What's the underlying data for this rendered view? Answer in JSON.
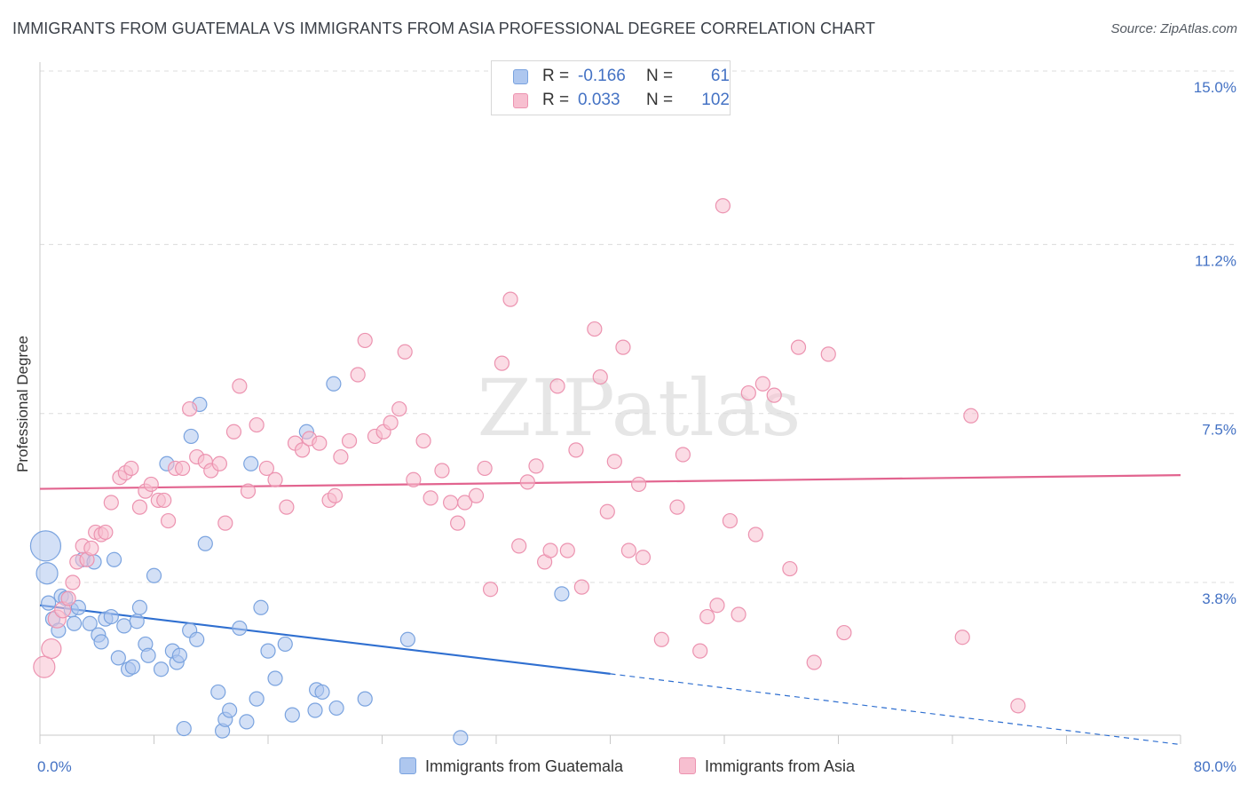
{
  "title": "IMMIGRANTS FROM GUATEMALA VS IMMIGRANTS FROM ASIA PROFESSIONAL DEGREE CORRELATION CHART",
  "source": "Source: ZipAtlas.com",
  "watermark": "ZIPatlas",
  "legend": {
    "series1": {
      "r_label": "R =",
      "r_value": "-0.166",
      "n_label": "N =",
      "n_value": "61"
    },
    "series2": {
      "r_label": "R =",
      "r_value": "0.033",
      "n_label": "N =",
      "n_value": "102"
    }
  },
  "bottom_legend": [
    "Immigrants from Guatemala",
    "Immigrants from Asia"
  ],
  "colors": {
    "guatemala_fill": "#aec7ef",
    "guatemala_stroke": "#7aa3df",
    "guatemala_line": "#2f6fd0",
    "asia_fill": "#f7bfd0",
    "asia_stroke": "#ec93b0",
    "asia_line": "#e2648f",
    "tick_label": "#4472c4",
    "grid": "#dcdcdc"
  },
  "chart_data": {
    "type": "scatter",
    "title": "IMMIGRANTS FROM GUATEMALA VS IMMIGRANTS FROM ASIA PROFESSIONAL DEGREE CORRELATION CHART",
    "xlabel": "",
    "ylabel": "Professional Degree",
    "xlim": [
      0,
      80
    ],
    "ylim": [
      0,
      15.5
    ],
    "x_tick_labels": [
      "0.0%",
      "80.0%"
    ],
    "y_ticks": [
      3.8,
      7.5,
      11.2,
      15.0
    ],
    "y_tick_labels": [
      "3.8%",
      "7.5%",
      "11.2%",
      "15.0%"
    ],
    "grid": "horizontal dashed",
    "legend_position": "top-center",
    "series": [
      {
        "name": "Immigrants from Guatemala",
        "R": -0.166,
        "N": 61,
        "trend": {
          "x0": 0,
          "y0": 3.3,
          "x1": 40,
          "y1": 1.8,
          "dashed_to": [
            80,
            0.25
          ]
        },
        "points": [
          [
            0.4,
            4.6,
            17
          ],
          [
            0.5,
            4.0,
            12
          ],
          [
            0.6,
            3.35,
            8
          ],
          [
            0.9,
            3.0,
            8
          ],
          [
            1.3,
            2.75,
            8
          ],
          [
            1.5,
            3.5,
            8
          ],
          [
            1.8,
            3.45,
            8
          ],
          [
            2.2,
            3.2,
            8
          ],
          [
            2.4,
            2.9,
            8
          ],
          [
            2.7,
            3.25,
            8
          ],
          [
            3.0,
            4.3,
            8
          ],
          [
            3.5,
            2.9,
            8
          ],
          [
            3.8,
            4.25,
            8
          ],
          [
            4.1,
            2.65,
            8
          ],
          [
            4.3,
            2.5,
            8
          ],
          [
            4.6,
            3.0,
            8
          ],
          [
            5.0,
            3.05,
            8
          ],
          [
            5.2,
            4.3,
            8
          ],
          [
            5.5,
            2.15,
            8
          ],
          [
            5.9,
            2.85,
            8
          ],
          [
            6.2,
            1.9,
            8
          ],
          [
            6.5,
            1.95,
            8
          ],
          [
            6.8,
            2.95,
            8
          ],
          [
            7.0,
            3.25,
            8
          ],
          [
            7.4,
            2.45,
            8
          ],
          [
            7.6,
            2.2,
            8
          ],
          [
            8.0,
            3.95,
            8
          ],
          [
            8.5,
            1.9,
            8
          ],
          [
            8.9,
            6.4,
            8
          ],
          [
            9.3,
            2.3,
            8
          ],
          [
            9.6,
            2.05,
            8
          ],
          [
            9.8,
            2.2,
            8
          ],
          [
            10.1,
            0.6,
            8
          ],
          [
            10.5,
            2.75,
            8
          ],
          [
            10.6,
            7.0,
            8
          ],
          [
            11.0,
            2.55,
            8
          ],
          [
            11.2,
            7.7,
            8
          ],
          [
            11.6,
            4.65,
            8
          ],
          [
            12.5,
            1.4,
            8
          ],
          [
            12.8,
            0.55,
            8
          ],
          [
            13.0,
            0.8,
            8
          ],
          [
            13.3,
            1.0,
            8
          ],
          [
            14.0,
            2.8,
            8
          ],
          [
            14.5,
            0.75,
            8
          ],
          [
            14.8,
            6.4,
            8
          ],
          [
            15.2,
            1.25,
            8
          ],
          [
            15.5,
            3.25,
            8
          ],
          [
            16.0,
            2.3,
            8
          ],
          [
            16.5,
            1.7,
            8
          ],
          [
            17.2,
            2.45,
            8
          ],
          [
            17.7,
            0.9,
            8
          ],
          [
            18.7,
            7.1,
            8
          ],
          [
            19.3,
            1.0,
            8
          ],
          [
            19.4,
            1.45,
            8
          ],
          [
            19.8,
            1.4,
            8
          ],
          [
            20.6,
            8.15,
            8
          ],
          [
            20.8,
            1.05,
            8
          ],
          [
            22.8,
            1.25,
            8
          ],
          [
            25.8,
            2.55,
            8
          ],
          [
            29.5,
            0.4,
            8
          ],
          [
            36.6,
            3.55,
            8
          ]
        ]
      },
      {
        "name": "Immigrants from Asia",
        "R": 0.033,
        "N": 102,
        "trend": {
          "x0": 0,
          "y0": 5.85,
          "x1": 80,
          "y1": 6.15
        },
        "points": [
          [
            0.3,
            1.95,
            12
          ],
          [
            0.8,
            2.35,
            11
          ],
          [
            1.2,
            3.0,
            10
          ],
          [
            1.6,
            3.2,
            9
          ],
          [
            2.0,
            3.45,
            8
          ],
          [
            2.3,
            3.8,
            8
          ],
          [
            2.6,
            4.25,
            8
          ],
          [
            3.0,
            4.6,
            8
          ],
          [
            3.3,
            4.3,
            8
          ],
          [
            3.6,
            4.55,
            8
          ],
          [
            3.9,
            4.9,
            8
          ],
          [
            4.3,
            4.85,
            8
          ],
          [
            4.6,
            4.9,
            8
          ],
          [
            5.0,
            5.55,
            8
          ],
          [
            5.6,
            6.1,
            8
          ],
          [
            6.0,
            6.2,
            8
          ],
          [
            6.4,
            6.3,
            8
          ],
          [
            7.0,
            5.45,
            8
          ],
          [
            7.4,
            5.8,
            8
          ],
          [
            7.8,
            5.95,
            8
          ],
          [
            8.3,
            5.6,
            8
          ],
          [
            8.7,
            5.6,
            8
          ],
          [
            9.0,
            5.15,
            8
          ],
          [
            9.5,
            6.3,
            8
          ],
          [
            10.0,
            6.3,
            8
          ],
          [
            10.5,
            7.6,
            8
          ],
          [
            11.0,
            6.55,
            8
          ],
          [
            11.6,
            6.45,
            8
          ],
          [
            12.0,
            6.25,
            8
          ],
          [
            12.6,
            6.4,
            8
          ],
          [
            13.0,
            5.1,
            8
          ],
          [
            13.6,
            7.1,
            8
          ],
          [
            14.0,
            8.1,
            8
          ],
          [
            14.6,
            5.8,
            8
          ],
          [
            15.2,
            7.25,
            8
          ],
          [
            15.9,
            6.3,
            8
          ],
          [
            16.5,
            6.05,
            8
          ],
          [
            17.3,
            5.45,
            8
          ],
          [
            17.9,
            6.85,
            8
          ],
          [
            18.4,
            6.7,
            8
          ],
          [
            18.9,
            6.95,
            8
          ],
          [
            19.6,
            6.85,
            8
          ],
          [
            20.3,
            5.6,
            8
          ],
          [
            20.7,
            5.7,
            8
          ],
          [
            21.1,
            6.55,
            8
          ],
          [
            21.7,
            6.9,
            8
          ],
          [
            22.3,
            8.35,
            8
          ],
          [
            22.8,
            9.1,
            8
          ],
          [
            23.5,
            7.0,
            8
          ],
          [
            24.1,
            7.1,
            8
          ],
          [
            24.6,
            7.3,
            8
          ],
          [
            25.2,
            7.6,
            8
          ],
          [
            25.6,
            8.85,
            8
          ],
          [
            26.2,
            6.05,
            8
          ],
          [
            26.9,
            6.9,
            8
          ],
          [
            27.4,
            5.65,
            8
          ],
          [
            28.2,
            6.25,
            8
          ],
          [
            28.8,
            5.55,
            8
          ],
          [
            29.3,
            5.1,
            8
          ],
          [
            29.8,
            5.55,
            8
          ],
          [
            30.6,
            5.7,
            8
          ],
          [
            31.2,
            6.3,
            8
          ],
          [
            31.6,
            3.65,
            8
          ],
          [
            32.4,
            8.6,
            8
          ],
          [
            33.0,
            10.0,
            8
          ],
          [
            33.6,
            4.6,
            8
          ],
          [
            34.2,
            6.0,
            8
          ],
          [
            34.8,
            6.35,
            8
          ],
          [
            35.4,
            4.25,
            8
          ],
          [
            35.8,
            4.5,
            8
          ],
          [
            36.3,
            8.1,
            8
          ],
          [
            37.0,
            4.5,
            8
          ],
          [
            37.6,
            6.7,
            8
          ],
          [
            38.0,
            3.7,
            8
          ],
          [
            38.9,
            9.35,
            8
          ],
          [
            39.3,
            8.3,
            8
          ],
          [
            39.8,
            5.35,
            8
          ],
          [
            40.3,
            6.45,
            8
          ],
          [
            40.9,
            8.95,
            8
          ],
          [
            41.3,
            4.5,
            8
          ],
          [
            42.0,
            5.95,
            8
          ],
          [
            42.3,
            4.35,
            8
          ],
          [
            43.6,
            2.55,
            8
          ],
          [
            44.7,
            5.45,
            8
          ],
          [
            45.1,
            6.6,
            8
          ],
          [
            46.3,
            2.3,
            8
          ],
          [
            46.8,
            3.05,
            8
          ],
          [
            47.5,
            3.3,
            8
          ],
          [
            47.9,
            12.05,
            8
          ],
          [
            48.4,
            5.15,
            8
          ],
          [
            49.0,
            3.1,
            8
          ],
          [
            49.7,
            7.95,
            8
          ],
          [
            50.2,
            4.85,
            8
          ],
          [
            50.7,
            8.15,
            8
          ],
          [
            51.5,
            7.9,
            8
          ],
          [
            52.6,
            4.1,
            8
          ],
          [
            53.2,
            8.95,
            8
          ],
          [
            54.3,
            2.05,
            8
          ],
          [
            55.3,
            8.8,
            8
          ],
          [
            56.4,
            2.7,
            8
          ],
          [
            65.3,
            7.45,
            8
          ],
          [
            68.6,
            1.1,
            8
          ],
          [
            64.7,
            2.6,
            8
          ]
        ]
      }
    ]
  }
}
